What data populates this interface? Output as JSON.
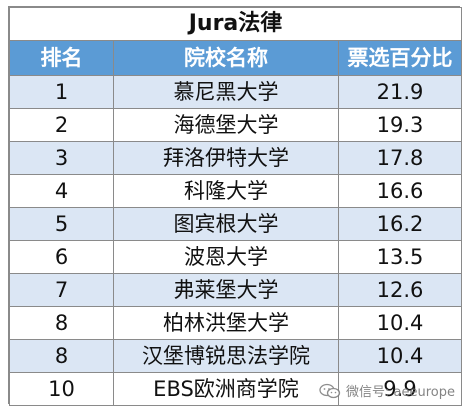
{
  "table": {
    "title": "Jura法律",
    "headers": {
      "rank": "排名",
      "university": "院校名称",
      "percentage": "票选百分比"
    },
    "rows": [
      {
        "rank": "1",
        "university": "慕尼黑大学",
        "percentage": "21.9"
      },
      {
        "rank": "2",
        "university": "海德堡大学",
        "percentage": "19.3"
      },
      {
        "rank": "3",
        "university": "拜洛伊特大学",
        "percentage": "17.8"
      },
      {
        "rank": "4",
        "university": "科隆大学",
        "percentage": "16.6"
      },
      {
        "rank": "5",
        "university": "图宾根大学",
        "percentage": "16.2"
      },
      {
        "rank": "6",
        "university": "波恩大学",
        "percentage": "13.5"
      },
      {
        "rank": "7",
        "university": "弗莱堡大学",
        "percentage": "12.6"
      },
      {
        "rank": "8",
        "university": "柏林洪堡大学",
        "percentage": "10.4"
      },
      {
        "rank": "8",
        "university": "汉堡博锐思法学院",
        "percentage": "10.4"
      },
      {
        "rank": "10",
        "university": "EBS欧洲商学院",
        "percentage": "9.9"
      }
    ]
  },
  "watermark": {
    "text": "微信号: aeeurope",
    "icon": "wechat-icon"
  },
  "colors": {
    "header_bg": "#5b9bd5",
    "header_text": "#ffffff",
    "stripe": "#dbe6f4",
    "border": "#8a8a8a"
  }
}
